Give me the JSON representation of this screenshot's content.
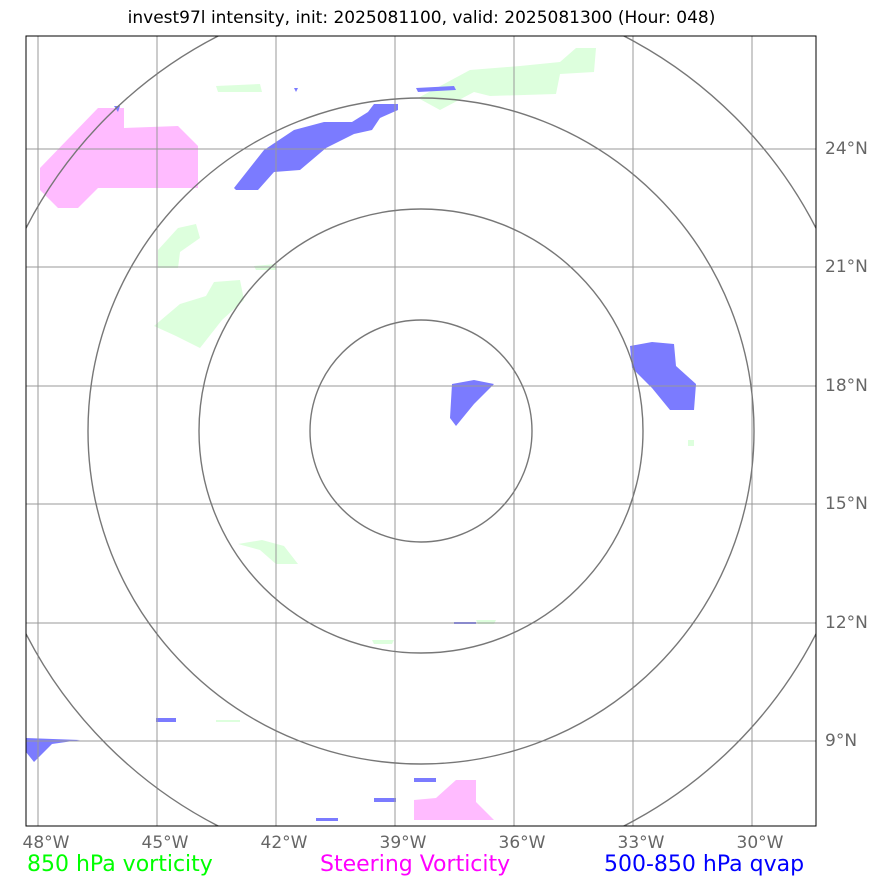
{
  "title": "invest97l intensity, init: 2025081100, valid: 2025081300 (Hour: 048)",
  "map": {
    "lon_ticks": [
      "48°W",
      "45°W",
      "42°W",
      "39°W",
      "36°W",
      "33°W",
      "30°W"
    ],
    "lat_ticks": [
      "24°N",
      "21°N",
      "18°N",
      "15°N",
      "12°N",
      "9°N"
    ],
    "range_rings": 4
  },
  "legend": {
    "vorticity_850": {
      "label": "850 hPa vorticity",
      "color": "#00ff00"
    },
    "steering_vorticity": {
      "label": "Steering Vorticity",
      "color": "#ff00ff"
    },
    "qvap": {
      "label": "500-850 hPa qvap",
      "color": "#0000ff"
    }
  },
  "colors": {
    "vorticity_fill": "#ddffdd",
    "steering_fill": "#ffbbff",
    "qvap_fill": "#7b7bff"
  }
}
